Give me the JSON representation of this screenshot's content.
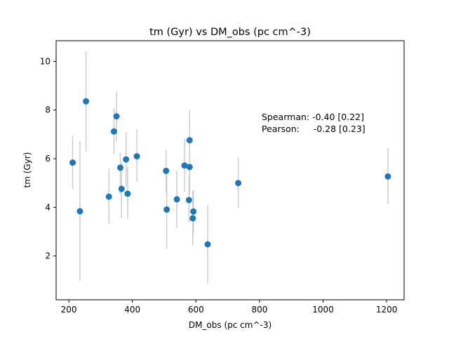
{
  "chart_data": {
    "type": "scatter",
    "title": "tm (Gyr) vs DM_obs (pc cm^-3)",
    "xlabel": "DM_obs (pc cm^-3)",
    "ylabel": "tm (Gyr)",
    "xlim": [
      160,
      1255
    ],
    "ylim": [
      0.2,
      10.85
    ],
    "xticks": [
      200,
      400,
      600,
      800,
      1000,
      1200
    ],
    "yticks": [
      2,
      4,
      6,
      8,
      10
    ],
    "grid": false,
    "marker_color": "#1f77b4",
    "errorbar_color": "#cccccc",
    "annotation": [
      "Spearman: -0.40 [0.22]",
      "Pearson:     -0.28 [0.23]"
    ],
    "points": [
      {
        "x": 212,
        "y": 5.84,
        "ylo": 4.75,
        "yhi": 6.95
      },
      {
        "x": 235,
        "y": 3.84,
        "ylo": 0.98,
        "yhi": 6.7
      },
      {
        "x": 254,
        "y": 8.36,
        "ylo": 6.3,
        "yhi": 10.4
      },
      {
        "x": 326,
        "y": 4.44,
        "ylo": 3.33,
        "yhi": 5.59
      },
      {
        "x": 342,
        "y": 7.12,
        "ylo": 6.2,
        "yhi": 8.08
      },
      {
        "x": 350,
        "y": 7.74,
        "ylo": 6.7,
        "yhi": 8.75
      },
      {
        "x": 362,
        "y": 5.63,
        "ylo": 4.55,
        "yhi": 6.25
      },
      {
        "x": 366,
        "y": 4.76,
        "ylo": 3.55,
        "yhi": 5.85
      },
      {
        "x": 380,
        "y": 5.97,
        "ylo": 4.85,
        "yhi": 7.1
      },
      {
        "x": 385,
        "y": 4.56,
        "ylo": 3.53,
        "yhi": 5.67
      },
      {
        "x": 414,
        "y": 6.1,
        "ylo": 5.05,
        "yhi": 7.2
      },
      {
        "x": 506,
        "y": 5.5,
        "ylo": 4.6,
        "yhi": 6.37
      },
      {
        "x": 508,
        "y": 3.91,
        "ylo": 2.3,
        "yhi": 5.5
      },
      {
        "x": 540,
        "y": 4.33,
        "ylo": 3.15,
        "yhi": 5.5
      },
      {
        "x": 564,
        "y": 5.72,
        "ylo": 4.63,
        "yhi": 6.84
      },
      {
        "x": 578,
        "y": 4.3,
        "ylo": 3.4,
        "yhi": 5.3
      },
      {
        "x": 580,
        "y": 6.76,
        "ylo": 5.55,
        "yhi": 8.0
      },
      {
        "x": 580,
        "y": 5.66,
        "ylo": 4.55,
        "yhi": 6.77
      },
      {
        "x": 590,
        "y": 3.55,
        "ylo": 2.45,
        "yhi": 4.65
      },
      {
        "x": 592,
        "y": 3.83,
        "ylo": 2.95,
        "yhi": 4.72
      },
      {
        "x": 637,
        "y": 2.48,
        "ylo": 0.88,
        "yhi": 4.1
      },
      {
        "x": 733,
        "y": 5.0,
        "ylo": 3.97,
        "yhi": 6.06
      },
      {
        "x": 1204,
        "y": 5.27,
        "ylo": 4.13,
        "yhi": 6.43
      }
    ]
  }
}
